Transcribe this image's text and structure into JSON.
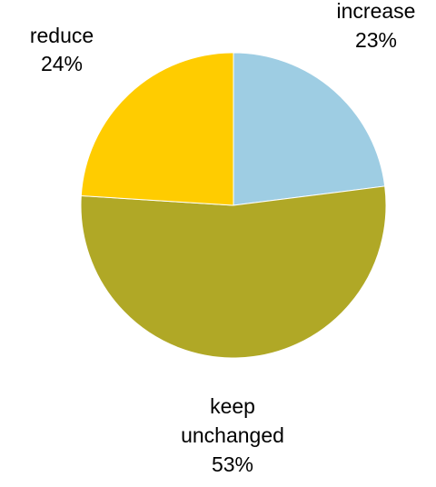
{
  "chart_data": {
    "type": "pie",
    "title": "",
    "start_angle_deg": 0,
    "direction": "clockwise",
    "slices": [
      {
        "label": "increase",
        "value": 23,
        "value_label": "23%",
        "color": "#9ecde3"
      },
      {
        "label": "keep unchanged",
        "label_lines": [
          "keep",
          "unchanged"
        ],
        "value": 53,
        "value_label": "53%",
        "color": "#b0a826"
      },
      {
        "label": "reduce",
        "value": 24,
        "value_label": "24%",
        "color": "#ffcc00"
      }
    ],
    "legend": "none"
  }
}
